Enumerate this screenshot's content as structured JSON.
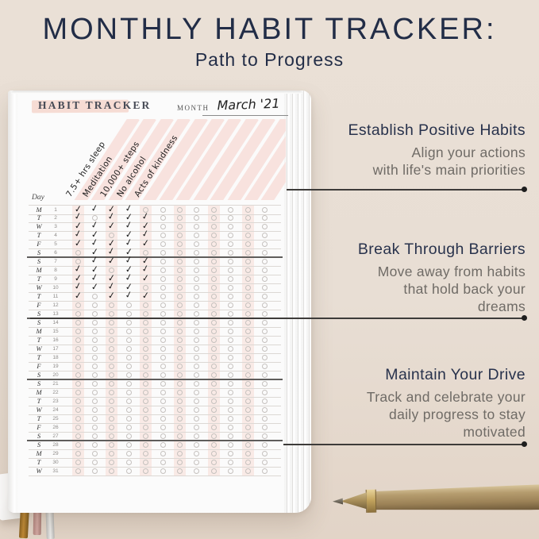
{
  "title": "MONTHLY HABIT TRACKER:",
  "subtitle": "Path to Progress",
  "journal": {
    "header_label": "HABIT TRACKER",
    "month_label": "MONTH",
    "month_value": "March '21",
    "day_header": "Day",
    "habits": [
      "7.5+ hrs sleep",
      "Meditation",
      "10,000+ steps",
      "No alcohol",
      "Acts of kindness"
    ],
    "total_columns": 12,
    "check_glyph": "✓",
    "week_breaks_after": [
      6,
      13,
      20,
      27
    ],
    "rows": [
      {
        "day": "M",
        "date": 1,
        "checks": [
          1,
          1,
          1,
          1,
          0
        ]
      },
      {
        "day": "T",
        "date": 2,
        "checks": [
          1,
          0,
          1,
          1,
          1
        ]
      },
      {
        "day": "W",
        "date": 3,
        "checks": [
          1,
          1,
          1,
          1,
          1
        ]
      },
      {
        "day": "T",
        "date": 4,
        "checks": [
          1,
          1,
          0,
          1,
          1
        ]
      },
      {
        "day": "F",
        "date": 5,
        "checks": [
          1,
          1,
          1,
          1,
          1
        ]
      },
      {
        "day": "S",
        "date": 6,
        "checks": [
          0,
          1,
          1,
          1,
          0
        ]
      },
      {
        "day": "S",
        "date": 7,
        "checks": [
          0,
          1,
          1,
          1,
          1
        ]
      },
      {
        "day": "M",
        "date": 8,
        "checks": [
          1,
          1,
          0,
          1,
          1
        ]
      },
      {
        "day": "T",
        "date": 9,
        "checks": [
          1,
          1,
          1,
          1,
          1
        ]
      },
      {
        "day": "W",
        "date": 10,
        "checks": [
          1,
          1,
          1,
          1,
          0
        ]
      },
      {
        "day": "T",
        "date": 11,
        "checks": [
          1,
          0,
          1,
          1,
          1
        ]
      },
      {
        "day": "F",
        "date": 12,
        "checks": [
          0,
          0,
          0,
          0,
          0
        ]
      },
      {
        "day": "S",
        "date": 13,
        "checks": [
          0,
          0,
          0,
          0,
          0
        ]
      },
      {
        "day": "S",
        "date": 14,
        "checks": [
          0,
          0,
          0,
          0,
          0
        ]
      },
      {
        "day": "M",
        "date": 15,
        "checks": [
          0,
          0,
          0,
          0,
          0
        ]
      },
      {
        "day": "T",
        "date": 16,
        "checks": [
          0,
          0,
          0,
          0,
          0
        ]
      },
      {
        "day": "W",
        "date": 17,
        "checks": [
          0,
          0,
          0,
          0,
          0
        ]
      },
      {
        "day": "T",
        "date": 18,
        "checks": [
          0,
          0,
          0,
          0,
          0
        ]
      },
      {
        "day": "F",
        "date": 19,
        "checks": [
          0,
          0,
          0,
          0,
          0
        ]
      },
      {
        "day": "S",
        "date": 20,
        "checks": [
          0,
          0,
          0,
          0,
          0
        ]
      },
      {
        "day": "S",
        "date": 21,
        "checks": [
          0,
          0,
          0,
          0,
          0
        ]
      },
      {
        "day": "M",
        "date": 22,
        "checks": [
          0,
          0,
          0,
          0,
          0
        ]
      },
      {
        "day": "T",
        "date": 23,
        "checks": [
          0,
          0,
          0,
          0,
          0
        ]
      },
      {
        "day": "W",
        "date": 24,
        "checks": [
          0,
          0,
          0,
          0,
          0
        ]
      },
      {
        "day": "T",
        "date": 25,
        "checks": [
          0,
          0,
          0,
          0,
          0
        ]
      },
      {
        "day": "F",
        "date": 26,
        "checks": [
          0,
          0,
          0,
          0,
          0
        ]
      },
      {
        "day": "S",
        "date": 27,
        "checks": [
          0,
          0,
          0,
          0,
          0
        ]
      },
      {
        "day": "S",
        "date": 28,
        "checks": [
          0,
          0,
          0,
          0,
          0
        ]
      },
      {
        "day": "M",
        "date": 29,
        "checks": [
          0,
          0,
          0,
          0,
          0
        ]
      },
      {
        "day": "T",
        "date": 30,
        "checks": [
          0,
          0,
          0,
          0,
          0
        ]
      },
      {
        "day": "W",
        "date": 31,
        "checks": [
          0,
          0,
          0,
          0,
          0
        ]
      }
    ]
  },
  "annotations": [
    {
      "heading": "Establish Positive Habits",
      "lines": [
        "Align your actions",
        "with life's main priorities"
      ]
    },
    {
      "heading": "Break Through Barriers",
      "lines": [
        "Move away from habits",
        "that hold back your",
        "dreams"
      ]
    },
    {
      "heading": "Maintain Your Drive",
      "lines": [
        "Track and celebrate your",
        "daily progress to stay",
        "motivated"
      ]
    }
  ],
  "colors": {
    "background": "#e8ded4",
    "title_navy": "#222d47",
    "body_gray": "#6f6b66",
    "stripe_pink": "#f8e2de",
    "highlight_peach": "#f6dcd4",
    "connector_line": "#3d3b39",
    "pen_gold": "#a8946a",
    "page_white": "#fbfbfb"
  }
}
